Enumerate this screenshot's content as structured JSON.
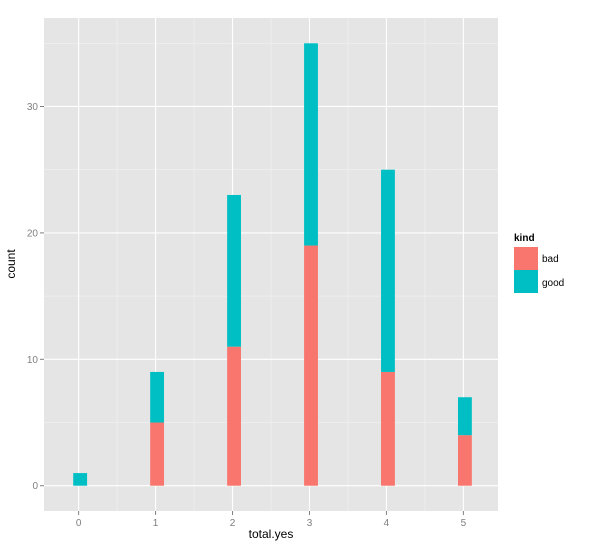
{
  "chart_data": {
    "type": "bar",
    "stacked": true,
    "title": "",
    "xlabel": "total.yes",
    "ylabel": "count",
    "x": [
      0,
      1,
      2,
      3,
      4,
      5
    ],
    "x_ticks": [
      "0",
      "1",
      "2",
      "3",
      "4",
      "5"
    ],
    "y_ticks": [
      0,
      10,
      20,
      30
    ],
    "ylim": [
      -2,
      37
    ],
    "xlim": [
      -0.45,
      5.45
    ],
    "grid": true,
    "legend": {
      "title": "kind",
      "position": "right"
    },
    "series": [
      {
        "name": "bad",
        "color": "#F8766D",
        "values": [
          0,
          5,
          11,
          19,
          9,
          4
        ]
      },
      {
        "name": "good",
        "color": "#00BFC4",
        "values": [
          1,
          4,
          12,
          16,
          16,
          3
        ]
      }
    ]
  }
}
